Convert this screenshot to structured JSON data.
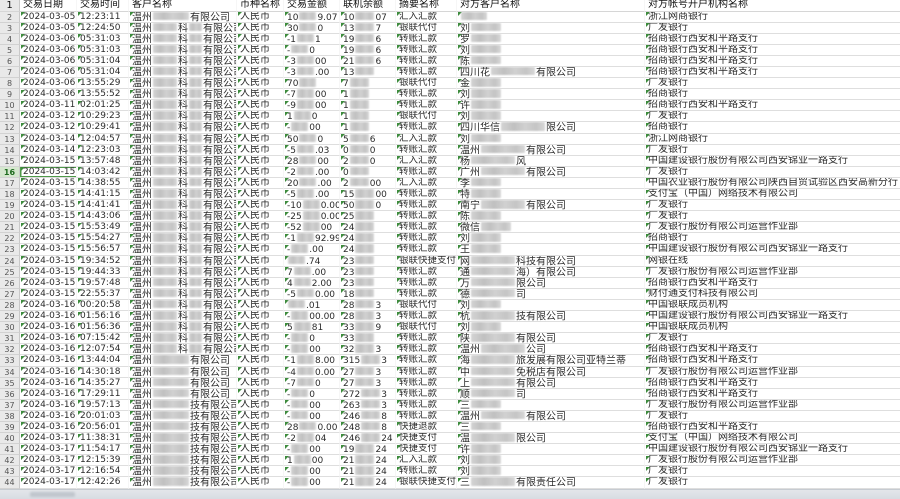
{
  "columns": [
    "交易日期",
    "交易时间",
    "客户名称",
    "币种名称",
    "交易金额",
    "联机余额",
    "摘要名称",
    "对方客户名称",
    "对方帐号开户机构名称"
  ],
  "header_row_number": "1",
  "customer_prefix": "温州",
  "currency_value": "人民币",
  "selected_row": 16,
  "accent_colors": {
    "text_marker_green": "#3d8b3d",
    "row_header_bg": "#e9e9e9",
    "gridline": "#dedede"
  },
  "rows": [
    {
      "row": 2,
      "date": "2024-03-05",
      "time": "12:23:11",
      "customer_mid": "",
      "customer_suffix": "有限公司",
      "amount_start": "10",
      "amount_end": "9.07",
      "balance_start": "10",
      "balance_end": "07",
      "summary": "汇入汇款",
      "counterparty_start": "",
      "counterparty_end": "",
      "bank": "浙江网商银行"
    },
    {
      "row": 3,
      "date": "2024-03-05",
      "time": "12:24:50",
      "customer_mid": "科",
      "customer_suffix": "有限公司",
      "amount_start": "30",
      "amount_end": "0",
      "balance_start": "13",
      "balance_end": "7",
      "summary": "银联代付",
      "counterparty_start": "刘",
      "counterparty_end": "",
      "bank": "广发银行"
    },
    {
      "row": 4,
      "date": "2024-03-06",
      "time": "05:31:03",
      "customer_mid": "科",
      "customer_suffix": "有限公司",
      "amount_start": "-1",
      "amount_end": "1",
      "balance_start": "19",
      "balance_end": "6",
      "summary": "转账汇款",
      "counterparty_start": "罗",
      "counterparty_end": "",
      "bank": "招商银行西安和平路支行"
    },
    {
      "row": 5,
      "date": "2024-03-06",
      "time": "05:31:03",
      "customer_mid": "科",
      "customer_suffix": "有限公司",
      "amount_start": "-",
      "amount_end": "0",
      "balance_start": "19",
      "balance_end": "6",
      "summary": "转账汇款",
      "counterparty_start": "刘",
      "counterparty_end": "",
      "bank": "招商银行西安和平路支行"
    },
    {
      "row": 6,
      "date": "2024-03-06",
      "time": "05:31:04",
      "customer_mid": "科",
      "customer_suffix": "有限公司",
      "amount_start": "-3",
      "amount_end": "00",
      "balance_start": "21",
      "balance_end": "6",
      "summary": "转账汇款",
      "counterparty_start": "陈",
      "counterparty_end": "",
      "bank": "招商银行西安和平路支行"
    },
    {
      "row": 7,
      "date": "2024-03-06",
      "time": "05:31:04",
      "customer_mid": "科",
      "customer_suffix": "有限公司",
      "amount_start": "-3",
      "amount_end": ".00",
      "balance_start": "13",
      "balance_end": "",
      "summary": "转账汇款",
      "counterparty_start": "四川花",
      "counterparty_end": "有限公司",
      "bank": "招商银行西安和平路支行"
    },
    {
      "row": 8,
      "date": "2024-03-06",
      "time": "13:55:29",
      "customer_mid": "科",
      "customer_suffix": "有限公司",
      "amount_start": "70",
      "amount_end": "",
      "balance_start": "7",
      "balance_end": "",
      "summary": "银联代付",
      "counterparty_start": "金",
      "counterparty_end": "",
      "bank": "广发银行"
    },
    {
      "row": 9,
      "date": "2024-03-06",
      "time": "13:55:52",
      "customer_mid": "科",
      "customer_suffix": "有限公司",
      "amount_start": "-7",
      "amount_end": "00",
      "balance_start": "1",
      "balance_end": "",
      "summary": "转账汇款",
      "counterparty_start": "刘",
      "counterparty_end": "",
      "bank": "招商银行"
    },
    {
      "row": 10,
      "date": "2024-03-11",
      "time": "02:01:25",
      "customer_mid": "科",
      "customer_suffix": "有限公司",
      "amount_start": "-9",
      "amount_end": "00",
      "balance_start": "1",
      "balance_end": "",
      "summary": "转账汇款",
      "counterparty_start": "许",
      "counterparty_end": "",
      "bank": "招商银行西安和平路支行"
    },
    {
      "row": 11,
      "date": "2024-03-12",
      "time": "10:29:23",
      "customer_mid": "科",
      "customer_suffix": "有限公司",
      "amount_start": "1",
      "amount_end": "0",
      "balance_start": "1",
      "balance_end": "",
      "summary": "银联代付",
      "counterparty_start": "刘",
      "counterparty_end": "",
      "bank": "广发银行"
    },
    {
      "row": 12,
      "date": "2024-03-12",
      "time": "10:29:41",
      "customer_mid": "科",
      "customer_suffix": "有限公司",
      "amount_start": "-",
      "amount_end": "00",
      "balance_start": "1",
      "balance_end": "",
      "summary": "转账汇款",
      "counterparty_start": "四川华信",
      "counterparty_end": "限公司",
      "bank": "招商银行"
    },
    {
      "row": 13,
      "date": "2024-03-14",
      "time": "12:04:57",
      "customer_mid": "科",
      "customer_suffix": "有限公司",
      "amount_start": "50",
      "amount_end": "0",
      "balance_start": "5",
      "balance_end": "6",
      "summary": "汇入汇款",
      "counterparty_start": "刘",
      "counterparty_end": "",
      "bank": "浙江网商银行"
    },
    {
      "row": 14,
      "date": "2024-03-14",
      "time": "12:23:03",
      "customer_mid": "科",
      "customer_suffix": "有限公司",
      "amount_start": "-5",
      "amount_end": ".03",
      "balance_start": "0",
      "balance_end": "0",
      "summary": "转账汇款",
      "counterparty_start": "温州",
      "counterparty_end": "有限公司",
      "bank": "广发银行"
    },
    {
      "row": 15,
      "date": "2024-03-15",
      "time": "13:57:48",
      "customer_mid": "科",
      "customer_suffix": "有限公司",
      "amount_start": "28",
      "amount_end": "00",
      "balance_start": "2",
      "balance_end": "0",
      "summary": "汇入汇款",
      "counterparty_start": "杨",
      "counterparty_end": "风",
      "bank": "中国建设银行股份有限公司西安锦业一路支行"
    },
    {
      "row": 16,
      "date": "2024-03-15",
      "time": "14:03:42",
      "customer_mid": "科",
      "customer_suffix": "有限公司",
      "amount_start": "-2",
      "amount_end": ".00",
      "balance_start": "0",
      "balance_end": "",
      "summary": "转账汇款",
      "counterparty_start": "广州",
      "counterparty_end": "有限公司",
      "bank": "广发银行"
    },
    {
      "row": 17,
      "date": "2024-03-15",
      "time": "14:38:55",
      "customer_mid": "科",
      "customer_suffix": "有限公司",
      "amount_start": "20",
      "amount_end": ".00",
      "balance_start": "2",
      "balance_end": "00",
      "summary": "汇入汇款",
      "counterparty_start": "李",
      "counterparty_end": "",
      "bank": "中国农业银行股份有限公司陕西自贸试验区西安高新分行"
    },
    {
      "row": 18,
      "date": "2024-03-15",
      "time": "14:41:15",
      "customer_mid": "科",
      "customer_suffix": "有限公司",
      "amount_start": "-5",
      "amount_end": ".00",
      "balance_start": "15",
      "balance_end": "00",
      "summary": "转账汇款",
      "counterparty_start": "特",
      "counterparty_end": "",
      "bank": "支付宝（中国）网络技术有限公司"
    },
    {
      "row": 19,
      "date": "2024-03-15",
      "time": "14:41:41",
      "customer_mid": "科",
      "customer_suffix": "有限公司",
      "amount_start": "-10",
      "amount_end": "0.00",
      "balance_start": "50",
      "balance_end": "0",
      "summary": "转账汇款",
      "counterparty_start": "南宁",
      "counterparty_end": "有限公司",
      "bank": "广发银行"
    },
    {
      "row": 20,
      "date": "2024-03-15",
      "time": "14:43:06",
      "customer_mid": "科",
      "customer_suffix": "有限公司",
      "amount_start": "-25",
      "amount_end": "0.00",
      "balance_start": "25",
      "balance_end": "",
      "summary": "转账汇款",
      "counterparty_start": "陈",
      "counterparty_end": "",
      "bank": "广发银行"
    },
    {
      "row": 21,
      "date": "2024-03-15",
      "time": "15:53:49",
      "customer_mid": "科",
      "customer_suffix": "有限公司",
      "amount_start": "-52",
      "amount_end": "00",
      "balance_start": "24",
      "balance_end": "",
      "summary": "转账汇款",
      "counterparty_start": "微信",
      "counterparty_end": "",
      "bank": "广发银行股份有限公司运营作业部"
    },
    {
      "row": 22,
      "date": "2024-03-15",
      "time": "15:54:27",
      "customer_mid": "科",
      "customer_suffix": "有限公司",
      "amount_start": "-1",
      "amount_end": "92.99",
      "balance_start": "24",
      "balance_end": "",
      "summary": "转账汇款",
      "counterparty_start": "刘",
      "counterparty_end": "",
      "bank": "招商银行"
    },
    {
      "row": 23,
      "date": "2024-03-15",
      "time": "15:56:57",
      "customer_mid": "科",
      "customer_suffix": "有限公司",
      "amount_start": "-",
      "amount_end": ".00",
      "balance_start": "24",
      "balance_end": "",
      "summary": "转账汇款",
      "counterparty_start": "王",
      "counterparty_end": "",
      "bank": "中国建设银行股份有限公司西安锦业一路支行"
    },
    {
      "row": 24,
      "date": "2024-03-15",
      "time": "19:34:52",
      "customer_mid": "科",
      "customer_suffix": "有限公司",
      "amount_start": "",
      "amount_end": ".74",
      "balance_start": "23",
      "balance_end": "",
      "summary": "银联快捷支付",
      "counterparty_start": "网",
      "counterparty_end": "科技有限公司",
      "bank": "网银在线"
    },
    {
      "row": 25,
      "date": "2024-03-15",
      "time": "19:44:33",
      "customer_mid": "科",
      "customer_suffix": "有限公司",
      "amount_start": "7",
      "amount_end": ".00",
      "balance_start": "23",
      "balance_end": "",
      "summary": "转账汇款",
      "counterparty_start": "通",
      "counterparty_end": "海）有限公司",
      "bank": "广发银行股份有限公司运营作业部"
    },
    {
      "row": 26,
      "date": "2024-03-15",
      "time": "19:57:48",
      "customer_mid": "科",
      "customer_suffix": "有限公司",
      "amount_start": "4",
      "amount_end": "2.00",
      "balance_start": "23",
      "balance_end": "",
      "summary": "转账汇款",
      "counterparty_start": "万",
      "counterparty_end": "限公司",
      "bank": "招商银行西安和平路支行"
    },
    {
      "row": 27,
      "date": "2024-03-15",
      "time": "22:55:37",
      "customer_mid": "科",
      "customer_suffix": "有限公司",
      "amount_start": "-5",
      "amount_end": "0.00",
      "balance_start": "18",
      "balance_end": "",
      "summary": "转账汇款",
      "counterparty_start": "德",
      "counterparty_end": "司",
      "bank": "财付通支付科技有限公司"
    },
    {
      "row": 28,
      "date": "2024-03-16",
      "time": "00:20:58",
      "customer_mid": "科",
      "customer_suffix": "有限公司",
      "amount_start": "",
      "amount_end": ".01",
      "balance_start": "28",
      "balance_end": "3",
      "summary": "银联代付",
      "counterparty_start": "刘",
      "counterparty_end": "",
      "bank": "中国银联成员机构"
    },
    {
      "row": 29,
      "date": "2024-03-16",
      "time": "01:56:16",
      "customer_mid": "科",
      "customer_suffix": "有限公司",
      "amount_start": "-",
      "amount_end": "00.00",
      "balance_start": "28",
      "balance_end": "3",
      "summary": "转账汇款",
      "counterparty_start": "杭",
      "counterparty_end": "技有限公司",
      "bank": "中国建设银行股份有限公司西安锦业一路支行"
    },
    {
      "row": 30,
      "date": "2024-03-16",
      "time": "01:56:36",
      "customer_mid": "科",
      "customer_suffix": "有限公司",
      "amount_start": "5",
      "amount_end": "81",
      "balance_start": "33",
      "balance_end": "9",
      "summary": "银联代付",
      "counterparty_start": "刘",
      "counterparty_end": "",
      "bank": "中国银联成员机构"
    },
    {
      "row": 31,
      "date": "2024-03-16",
      "time": "07:15:42",
      "customer_mid": "科",
      "customer_suffix": "有限公司",
      "amount_start": "-",
      "amount_end": "0",
      "balance_start": "33",
      "balance_end": "",
      "summary": "转账汇款",
      "counterparty_start": "陕",
      "counterparty_end": "有限公司",
      "bank": "广发银行"
    },
    {
      "row": 32,
      "date": "2024-03-16",
      "time": "12:07:54",
      "customer_mid": "科",
      "customer_suffix": "有限公司",
      "amount_start": "-",
      "amount_end": "00",
      "balance_start": "32",
      "balance_end": "3",
      "summary": "转账汇款",
      "counterparty_start": "温州",
      "counterparty_end": "公司",
      "bank": "招商银行西安和平路支行"
    },
    {
      "row": 33,
      "date": "2024-03-16",
      "time": "13:44:04",
      "customer_mid": "",
      "customer_suffix": "有限公司",
      "amount_start": "-1",
      "amount_end": "8.00",
      "balance_start": "315",
      "balance_end": "3",
      "summary": "转账汇款",
      "counterparty_start": "海",
      "counterparty_end": "旅发展有限公司亚特兰蒂",
      "bank": "招商银行西安和平路支行"
    },
    {
      "row": 34,
      "date": "2024-03-16",
      "time": "14:30:18",
      "customer_mid": "",
      "customer_suffix": "有限公司",
      "amount_start": "-4",
      "amount_end": "0.00",
      "balance_start": "27",
      "balance_end": "3",
      "summary": "转账汇款",
      "counterparty_start": "中",
      "counterparty_end": "免税店有限公司",
      "bank": "广发银行股份有限公司运营作业部"
    },
    {
      "row": 35,
      "date": "2024-03-16",
      "time": "14:35:27",
      "customer_mid": "",
      "customer_suffix": "有限公司",
      "amount_start": "-7",
      "amount_end": "0",
      "balance_start": "27",
      "balance_end": "3",
      "summary": "转账汇款",
      "counterparty_start": "上",
      "counterparty_end": "有限公司",
      "bank": "招商银行西安和平路支行"
    },
    {
      "row": 36,
      "date": "2024-03-16",
      "time": "17:29:11",
      "customer_mid": "",
      "customer_suffix": "有限公司",
      "amount_start": "-",
      "amount_end": "0",
      "balance_start": "272",
      "balance_end": "3",
      "summary": "转账汇款",
      "counterparty_start": "顺",
      "counterparty_end": "司",
      "bank": "招商银行西安和平路支行"
    },
    {
      "row": 37,
      "date": "2024-03-16",
      "time": "19:57:13",
      "customer_mid": "",
      "customer_suffix": "技有限公司",
      "amount_start": "-",
      "amount_end": "00",
      "balance_start": "263",
      "balance_end": "3",
      "summary": "转账汇款",
      "counterparty_start": "三",
      "counterparty_end": "",
      "bank": "广发银行股份有限公司运营作业部"
    },
    {
      "row": 38,
      "date": "2024-03-16",
      "time": "20:01:03",
      "customer_mid": "",
      "customer_suffix": "技有限公司",
      "amount_start": "-",
      "amount_end": "00",
      "balance_start": "246",
      "balance_end": "8",
      "summary": "转账汇款",
      "counterparty_start": "温州",
      "counterparty_end": "有限公司",
      "bank": "广发银行"
    },
    {
      "row": 39,
      "date": "2024-03-16",
      "time": "20:56:01",
      "customer_mid": "",
      "customer_suffix": "技有限公司",
      "amount_start": "28",
      "amount_end": "0.00",
      "balance_start": "248",
      "balance_end": "8",
      "summary": "快捷退款",
      "counterparty_start": "三",
      "counterparty_end": "",
      "bank": "招商银行西安和平路支行"
    },
    {
      "row": 40,
      "date": "2024-03-17",
      "time": "11:38:31",
      "customer_mid": "",
      "customer_suffix": "技有限公司",
      "amount_start": "-2",
      "amount_end": "04",
      "balance_start": "246",
      "balance_end": "24",
      "summary": "快捷支付",
      "counterparty_start": "温",
      "counterparty_end": "限公司",
      "bank": "支付宝（中国）网络技术有限公司"
    },
    {
      "row": 41,
      "date": "2024-03-17",
      "time": "11:54:17",
      "customer_mid": "",
      "customer_suffix": "技有限公司",
      "amount_start": "-",
      "amount_end": "00",
      "balance_start": "19",
      "balance_end": "24",
      "summary": "快捷支付",
      "counterparty_start": "许",
      "counterparty_end": "",
      "bank": "中国建设银行股份有限公司西安锦业一路支行"
    },
    {
      "row": 42,
      "date": "2024-03-17",
      "time": "12:15:39",
      "customer_mid": "",
      "customer_suffix": "技有限公司",
      "amount_start": "1",
      "amount_end": "00",
      "balance_start": "21",
      "balance_end": "24",
      "summary": "汇入汇款",
      "counterparty_start": "刘",
      "counterparty_end": "",
      "bank": "广发银行股份有限公司运营作业部"
    },
    {
      "row": 43,
      "date": "2024-03-17",
      "time": "12:16:54",
      "customer_mid": "",
      "customer_suffix": "技有限公司",
      "amount_start": "-",
      "amount_end": "00",
      "balance_start": "21",
      "balance_end": "24",
      "summary": "转账汇款",
      "counterparty_start": "刘",
      "counterparty_end": "",
      "bank": "广发银行"
    },
    {
      "row": 44,
      "date": "2024-03-17",
      "time": "12:42:26",
      "customer_mid": "",
      "customer_suffix": "技有限公司",
      "amount_start": "-",
      "amount_end": "00",
      "balance_start": "21",
      "balance_end": "24",
      "summary": "银联快捷支付",
      "counterparty_start": "三",
      "counterparty_end": "有限责任公司",
      "bank": "广发银行"
    }
  ]
}
